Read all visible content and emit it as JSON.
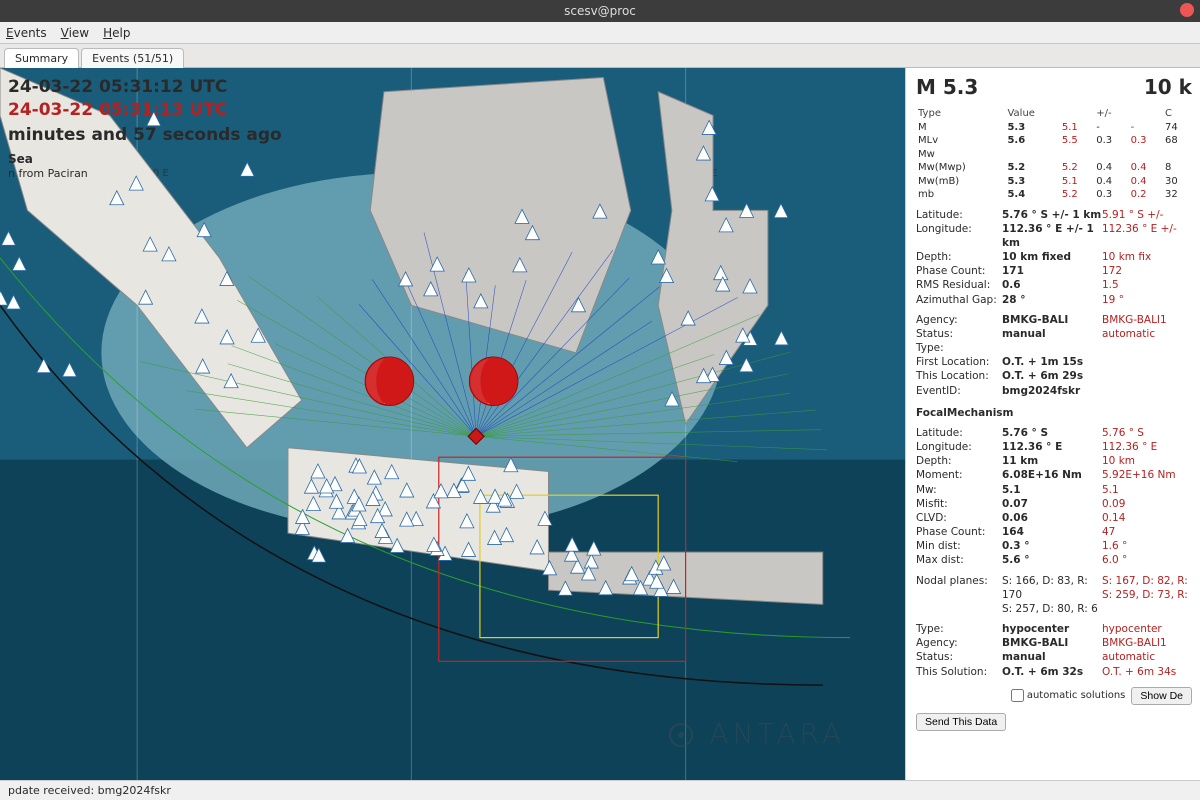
{
  "window": {
    "title": "scesv@proc",
    "menu": [
      "Events",
      "View",
      "Help"
    ],
    "tabs": [
      "Summary",
      "Events (51/51)"
    ],
    "active_tab": 0
  },
  "event_header": {
    "utc1": "24-03-22 05:31:12 UTC",
    "utc2": "24-03-22 05:31:13 UTC",
    "age": "minutes and 57 seconds ago",
    "region": "Sea",
    "location_from": "n from Paciran"
  },
  "map": {
    "viewport": {
      "lon_min": 95,
      "lon_max": 128,
      "lat_min": -13,
      "lat_max": 2
    },
    "graticule_labels": [
      "100 E",
      "110 E",
      "120 E"
    ],
    "ocean_color": "#1a5d7a",
    "ocean_deep": "#0e4258",
    "shelf_color": "#6fa8b8",
    "land_color": "#c9c7c3",
    "land_highlight": "#e8e6e0",
    "ray_color_near": "#3a9c3a",
    "ray_color_far": "#1a40c0",
    "box_colors": {
      "red": "#cc2020",
      "green": "#20a040",
      "yellow": "#e0d020"
    },
    "epicenter": {
      "lon": 112.36,
      "lat": -5.76,
      "color": "#cc1818"
    },
    "beachballs": [
      {
        "lon": 109.2,
        "lat": -4.6,
        "r": 24
      },
      {
        "lon": 113.0,
        "lat": -4.6,
        "r": 24
      }
    ],
    "station_triangle": {
      "fill": "#ffffff",
      "stroke": "#2a6aa8",
      "size": 7
    },
    "station_count_approx": 140
  },
  "summary": {
    "magnitude_header": "M 5.3",
    "depth_header": "10 k",
    "mag_table": {
      "cols": [
        "Type",
        "Value",
        "",
        "+/-",
        "",
        "C"
      ],
      "rows": [
        [
          "M",
          "5.3",
          "5.1",
          "-",
          "-",
          "74"
        ],
        [
          "MLv",
          "5.6",
          "5.5",
          "0.3",
          "0.3",
          "68"
        ],
        [
          "Mw",
          "",
          "",
          "",
          "",
          ""
        ],
        [
          "Mw(Mwp)",
          "5.2",
          "5.2",
          "0.4",
          "0.4",
          "8"
        ],
        [
          "Mw(mB)",
          "5.3",
          "5.1",
          "0.4",
          "0.4",
          "30"
        ],
        [
          "mb",
          "5.4",
          "5.2",
          "0.3",
          "0.2",
          "32"
        ]
      ]
    },
    "hypo": [
      {
        "k": "Latitude:",
        "v1": "5.76 ° S  +/-  1 km",
        "v2": "5.91 ° S  +/-"
      },
      {
        "k": "Longitude:",
        "v1": "112.36 ° E  +/-  1 km",
        "v2": "112.36 ° E  +/-"
      },
      {
        "k": "Depth:",
        "v1": "10 km   fixed",
        "v2": "10 km   fix"
      },
      {
        "k": "Phase Count:",
        "v1": "171",
        "v2": "172"
      },
      {
        "k": "RMS Residual:",
        "v1": "0.6",
        "v2": "1.5"
      },
      {
        "k": "Azimuthal Gap:",
        "v1": "28 °",
        "v2": "19 °"
      }
    ],
    "origin": [
      {
        "k": "Agency:",
        "v1": "BMKG-BALI",
        "v2": "BMKG-BALI1"
      },
      {
        "k": "Status:",
        "v1": "manual",
        "v2": "automatic"
      },
      {
        "k": "Type:",
        "v1": "",
        "v2": ""
      },
      {
        "k": "First Location:",
        "v1": "O.T. + 1m 15s",
        "v2": ""
      },
      {
        "k": "This Location:",
        "v1": "O.T. + 6m 29s",
        "v2": ""
      },
      {
        "k": "EventID:",
        "v1": "bmg2024fskr",
        "v2": ""
      }
    ],
    "fm_title": "FocalMechanism",
    "fm": [
      {
        "k": "Latitude:",
        "v1": "5.76 ° S",
        "v2": "5.76 ° S"
      },
      {
        "k": "Longitude:",
        "v1": "112.36 ° E",
        "v2": "112.36 ° E"
      },
      {
        "k": "Depth:",
        "v1": "11 km",
        "v2": "10 km"
      },
      {
        "k": "Moment:",
        "v1": "6.08E+16 Nm",
        "v2": "5.92E+16 Nm"
      },
      {
        "k": "Mw:",
        "v1": "5.1",
        "v2": "5.1"
      },
      {
        "k": "Misfit:",
        "v1": "0.07",
        "v2": "0.09"
      },
      {
        "k": "CLVD:",
        "v1": "0.06",
        "v2": "0.14"
      },
      {
        "k": "Phase Count:",
        "v1": "164",
        "v2": "47"
      },
      {
        "k": "Min dist:",
        "v1": "0.3 °",
        "v2": "1.6 °"
      },
      {
        "k": "Max dist:",
        "v1": "5.6 °",
        "v2": "6.0 °"
      }
    ],
    "nodal": {
      "k": "Nodal planes:",
      "v1": "S: 166, D: 83, R: 170\nS: 257, D: 80, R: 6",
      "v2": "S: 167, D: 82, R:\nS: 259, D: 73, R:"
    },
    "tail": [
      {
        "k": "Type:",
        "v1": "hypocenter",
        "v2": "hypocenter"
      },
      {
        "k": "Agency:",
        "v1": "BMKG-BALI",
        "v2": "BMKG-BALI1"
      },
      {
        "k": "Status:",
        "v1": "manual",
        "v2": "automatic"
      },
      {
        "k": "This Solution:",
        "v1": "O.T. + 6m 32s",
        "v2": "O.T. + 6m 34s"
      }
    ],
    "buttons": {
      "checkbox": "automatic solutions",
      "show_details": "Show De",
      "send": "Send This Data"
    }
  },
  "statusbar": {
    "text": "pdate received: bmg2024fskr"
  },
  "watermark": "ANTARA"
}
